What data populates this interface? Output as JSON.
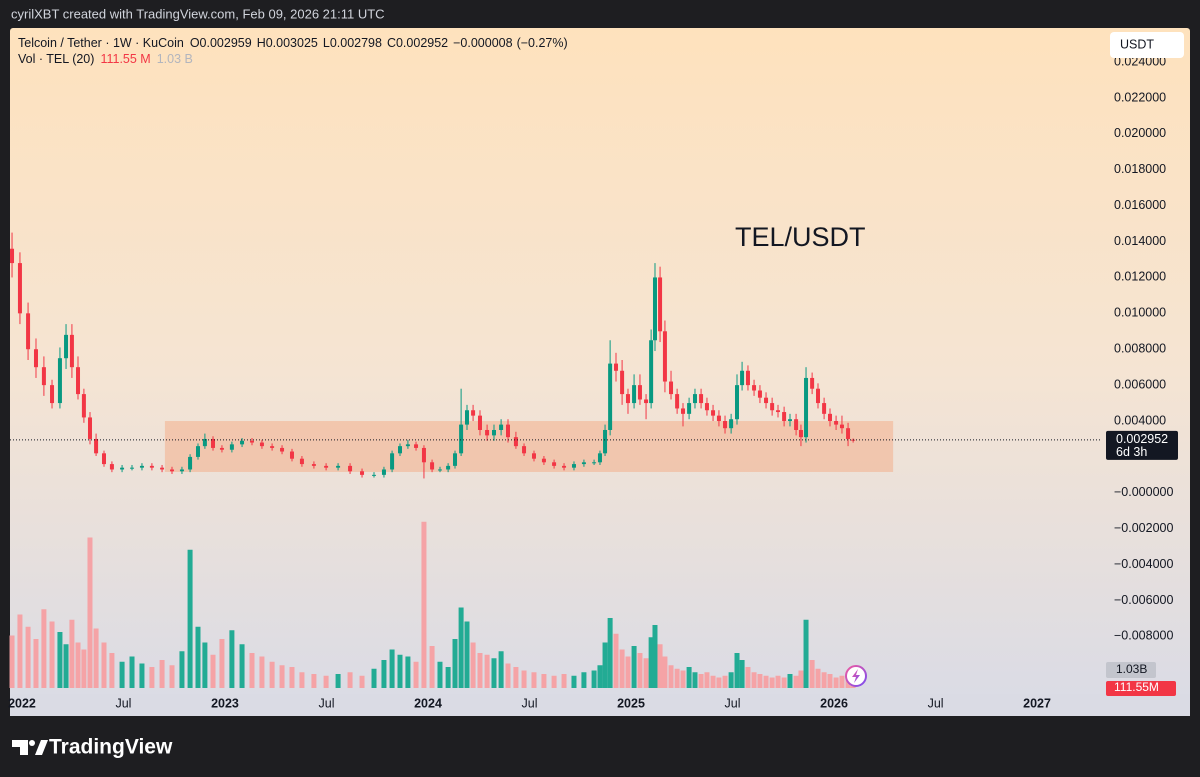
{
  "header": {
    "credit": "cyrilXBT created with TradingView.com, Feb 09, 2026 21:11 UTC"
  },
  "footer": {
    "brand": "TradingView"
  },
  "chart_data": {
    "type": "candlestick",
    "symbol": "Telcoin / Tether · 1W · KuCoin",
    "ohlc_prefixes": [
      "O",
      "H",
      "L",
      "C"
    ],
    "change": {
      "value": -8e-06,
      "label": "−0.000008"
    },
    "change_pct": {
      "value": -0.27,
      "label": "(−0.27%)"
    },
    "volume_title": "Vol · TEL (20)",
    "annotation": "TEL/USDT",
    "currency": "USDT",
    "countdown": "6d 3h",
    "up_color": "#089981",
    "down_color": "#f23645",
    "volume_up_color": "#22ab94",
    "volume_down_color": "#f5a3a6",
    "x": [
      2021.951,
      2021.99,
      2022.03,
      2022.069,
      2022.108,
      2022.148,
      2022.187,
      2022.217,
      2022.246,
      2022.276,
      2022.305,
      2022.335,
      2022.365,
      2022.404,
      2022.443,
      2022.493,
      2022.542,
      2022.591,
      2022.64,
      2022.69,
      2022.739,
      2022.788,
      2022.828,
      2022.867,
      2022.901,
      2022.941,
      2022.985,
      2023.034,
      2023.084,
      2023.133,
      2023.182,
      2023.232,
      2023.281,
      2023.33,
      2023.379,
      2023.438,
      2023.498,
      2023.557,
      2023.616,
      2023.675,
      2023.734,
      2023.783,
      2023.823,
      2023.862,
      2023.901,
      2023.941,
      2023.98,
      2024.02,
      2024.059,
      2024.099,
      2024.133,
      2024.163,
      2024.192,
      2024.222,
      2024.256,
      2024.291,
      2024.325,
      2024.36,
      2024.394,
      2024.433,
      2024.473,
      2024.522,
      2024.571,
      2024.621,
      2024.67,
      2024.719,
      2024.768,
      2024.818,
      2024.847,
      2024.872,
      2024.897,
      2024.926,
      2024.956,
      2024.985,
      2025.015,
      2025.044,
      2025.074,
      2025.099,
      2025.118,
      2025.143,
      2025.167,
      2025.197,
      2025.227,
      2025.256,
      2025.286,
      2025.315,
      2025.345,
      2025.374,
      2025.404,
      2025.433,
      2025.463,
      2025.493,
      2025.522,
      2025.547,
      2025.576,
      2025.606,
      2025.635,
      2025.665,
      2025.695,
      2025.724,
      2025.754,
      2025.783,
      2025.813,
      2025.837,
      2025.862,
      2025.892,
      2025.921,
      2025.951,
      2025.98,
      2026.01,
      2026.039,
      2026.069,
      2026.094
    ],
    "ohlc": [
      [
        0.0136,
        0.0145,
        0.012,
        0.0128
      ],
      [
        0.0128,
        0.0134,
        0.0094,
        0.01
      ],
      [
        0.01,
        0.0106,
        0.0074,
        0.008
      ],
      [
        0.008,
        0.0086,
        0.0064,
        0.007
      ],
      [
        0.007,
        0.0076,
        0.0054,
        0.006
      ],
      [
        0.006,
        0.0063,
        0.0047,
        0.005
      ],
      [
        0.005,
        0.0081,
        0.0047,
        0.0075
      ],
      [
        0.0075,
        0.0094,
        0.0069,
        0.0088
      ],
      [
        0.0088,
        0.0094,
        0.0064,
        0.007
      ],
      [
        0.007,
        0.0076,
        0.0052,
        0.0055
      ],
      [
        0.0055,
        0.0058,
        0.0039,
        0.0042
      ],
      [
        0.0042,
        0.0045,
        0.0027,
        0.003
      ],
      [
        0.003,
        0.0033,
        0.00205,
        0.0022
      ],
      [
        0.0022,
        0.00235,
        0.00145,
        0.0016
      ],
      [
        0.0016,
        0.00175,
        0.00115,
        0.0013
      ],
      [
        0.0013,
        0.00155,
        0.00115,
        0.0014
      ],
      [
        0.0014,
        0.00155,
        0.00125,
        0.0014
      ],
      [
        0.0014,
        0.00165,
        0.00125,
        0.0015
      ],
      [
        0.0015,
        0.00165,
        0.00125,
        0.0014
      ],
      [
        0.0014,
        0.00155,
        0.00115,
        0.0013
      ],
      [
        0.0013,
        0.00145,
        0.00105,
        0.0012
      ],
      [
        0.0012,
        0.00145,
        0.00105,
        0.0013
      ],
      [
        0.0013,
        0.00215,
        0.00115,
        0.002
      ],
      [
        0.002,
        0.00275,
        0.00185,
        0.0026
      ],
      [
        0.0026,
        0.0033,
        0.00245,
        0.003
      ],
      [
        0.003,
        0.00315,
        0.00235,
        0.0025
      ],
      [
        0.0025,
        0.00265,
        0.00225,
        0.0024
      ],
      [
        0.0024,
        0.00285,
        0.00225,
        0.0027
      ],
      [
        0.0027,
        0.00305,
        0.00255,
        0.0029
      ],
      [
        0.0029,
        0.00305,
        0.00265,
        0.0028
      ],
      [
        0.0028,
        0.00295,
        0.00245,
        0.0026
      ],
      [
        0.0026,
        0.00275,
        0.00235,
        0.0025
      ],
      [
        0.0025,
        0.00265,
        0.00215,
        0.0023
      ],
      [
        0.0023,
        0.00245,
        0.00175,
        0.0019
      ],
      [
        0.0019,
        0.00205,
        0.00145,
        0.0016
      ],
      [
        0.0016,
        0.00175,
        0.00135,
        0.0015
      ],
      [
        0.0015,
        0.00165,
        0.00125,
        0.0014
      ],
      [
        0.0014,
        0.00165,
        0.00125,
        0.0015
      ],
      [
        0.0015,
        0.00165,
        0.00105,
        0.0012
      ],
      [
        0.0012,
        0.00135,
        0.00085,
        0.001
      ],
      [
        0.001,
        0.00115,
        0.00085,
        0.001
      ],
      [
        0.001,
        0.00145,
        0.00085,
        0.0013
      ],
      [
        0.0013,
        0.00235,
        0.00115,
        0.0022
      ],
      [
        0.0022,
        0.00275,
        0.00205,
        0.0026
      ],
      [
        0.0026,
        0.00295,
        0.00245,
        0.0027
      ],
      [
        0.0027,
        0.00285,
        0.00235,
        0.0025
      ],
      [
        0.0025,
        0.00265,
        0.0008,
        0.0017
      ],
      [
        0.0017,
        0.00185,
        0.00115,
        0.0013
      ],
      [
        0.0013,
        0.00145,
        0.00115,
        0.0013
      ],
      [
        0.0013,
        0.00165,
        0.00115,
        0.0015
      ],
      [
        0.0015,
        0.00235,
        0.00135,
        0.0022
      ],
      [
        0.0022,
        0.0058,
        0.00205,
        0.0038
      ],
      [
        0.0038,
        0.0049,
        0.0035,
        0.0046
      ],
      [
        0.0046,
        0.0049,
        0.004,
        0.0043
      ],
      [
        0.0043,
        0.0046,
        0.0032,
        0.0035
      ],
      [
        0.0035,
        0.0038,
        0.0029,
        0.0032
      ],
      [
        0.0032,
        0.0038,
        0.0029,
        0.0035
      ],
      [
        0.0035,
        0.0041,
        0.0032,
        0.0038
      ],
      [
        0.0038,
        0.0041,
        0.0028,
        0.0031
      ],
      [
        0.0031,
        0.0034,
        0.00245,
        0.0026
      ],
      [
        0.0026,
        0.00275,
        0.00205,
        0.0022
      ],
      [
        0.0022,
        0.00235,
        0.00175,
        0.0019
      ],
      [
        0.0019,
        0.00205,
        0.00155,
        0.0017
      ],
      [
        0.0017,
        0.00185,
        0.00135,
        0.0015
      ],
      [
        0.0015,
        0.00165,
        0.00125,
        0.0014
      ],
      [
        0.0014,
        0.00175,
        0.00125,
        0.0016
      ],
      [
        0.0016,
        0.00185,
        0.00145,
        0.0017
      ],
      [
        0.0017,
        0.00185,
        0.00155,
        0.0017
      ],
      [
        0.0017,
        0.00235,
        0.00155,
        0.0022
      ],
      [
        0.0022,
        0.0038,
        0.00205,
        0.0035
      ],
      [
        0.0035,
        0.0085,
        0.0032,
        0.0072
      ],
      [
        0.0072,
        0.0078,
        0.0062,
        0.0068
      ],
      [
        0.0068,
        0.0074,
        0.0049,
        0.0055
      ],
      [
        0.0055,
        0.0058,
        0.0044,
        0.005
      ],
      [
        0.005,
        0.0066,
        0.0047,
        0.006
      ],
      [
        0.006,
        0.0066,
        0.0049,
        0.0052
      ],
      [
        0.0052,
        0.0055,
        0.0041,
        0.005
      ],
      [
        0.005,
        0.0091,
        0.0047,
        0.0085
      ],
      [
        0.0085,
        0.0128,
        0.0079,
        0.012
      ],
      [
        0.012,
        0.0126,
        0.0084,
        0.009
      ],
      [
        0.009,
        0.0096,
        0.0056,
        0.0062
      ],
      [
        0.0062,
        0.0068,
        0.0052,
        0.0055
      ],
      [
        0.0055,
        0.0058,
        0.0044,
        0.0047
      ],
      [
        0.0047,
        0.005,
        0.0037,
        0.0044
      ],
      [
        0.0044,
        0.0053,
        0.0041,
        0.005
      ],
      [
        0.005,
        0.0058,
        0.0047,
        0.0055
      ],
      [
        0.0055,
        0.0058,
        0.0047,
        0.005
      ],
      [
        0.005,
        0.0053,
        0.0043,
        0.0046
      ],
      [
        0.0046,
        0.0049,
        0.004,
        0.0043
      ],
      [
        0.0043,
        0.0046,
        0.0037,
        0.004
      ],
      [
        0.004,
        0.0043,
        0.0033,
        0.0036
      ],
      [
        0.0036,
        0.0044,
        0.0033,
        0.0041
      ],
      [
        0.0041,
        0.0066,
        0.0038,
        0.006
      ],
      [
        0.006,
        0.0073,
        0.0057,
        0.0068
      ],
      [
        0.0068,
        0.0071,
        0.0057,
        0.006
      ],
      [
        0.006,
        0.0063,
        0.0054,
        0.0057
      ],
      [
        0.0057,
        0.006,
        0.005,
        0.0053
      ],
      [
        0.0053,
        0.0056,
        0.0047,
        0.005
      ],
      [
        0.005,
        0.0053,
        0.0043,
        0.0046
      ],
      [
        0.0046,
        0.0049,
        0.0042,
        0.0045
      ],
      [
        0.0045,
        0.0048,
        0.0037,
        0.004
      ],
      [
        0.004,
        0.0044,
        0.0037,
        0.0041
      ],
      [
        0.0041,
        0.0044,
        0.0032,
        0.0035
      ],
      [
        0.0035,
        0.0038,
        0.0026,
        0.0031
      ],
      [
        0.0031,
        0.007,
        0.0028,
        0.0064
      ],
      [
        0.0064,
        0.0067,
        0.0055,
        0.0058
      ],
      [
        0.0058,
        0.0061,
        0.0047,
        0.005
      ],
      [
        0.005,
        0.0053,
        0.0041,
        0.0044
      ],
      [
        0.0044,
        0.0047,
        0.0037,
        0.004
      ],
      [
        0.004,
        0.0043,
        0.0035,
        0.0038
      ],
      [
        0.0038,
        0.0043,
        0.0033,
        0.0036
      ],
      [
        0.0036,
        0.0039,
        0.0026,
        0.003
      ],
      [
        0.002959,
        0.003025,
        0.002798,
        0.002952
      ]
    ],
    "volume": [
      3000,
      4200,
      3500,
      2800,
      4500,
      3800,
      3200,
      2500,
      3900,
      2600,
      2200,
      8600,
      3400,
      2600,
      2000,
      1500,
      1800,
      1400,
      1200,
      1600,
      1300,
      2100,
      7900,
      3500,
      2600,
      1900,
      2800,
      3300,
      2500,
      2000,
      1800,
      1500,
      1300,
      1200,
      900,
      800,
      700,
      800,
      900,
      700,
      1100,
      1600,
      2200,
      1900,
      1800,
      1500,
      9500,
      2400,
      1500,
      1200,
      2800,
      4600,
      3800,
      2600,
      2000,
      1900,
      1700,
      2100,
      1400,
      1200,
      1000,
      900,
      800,
      700,
      800,
      700,
      900,
      1000,
      1300,
      2600,
      4000,
      3100,
      2200,
      1800,
      2400,
      2000,
      1700,
      2900,
      3600,
      2500,
      1800,
      1300,
      1100,
      1000,
      1200,
      900,
      800,
      900,
      700,
      600,
      700,
      900,
      2000,
      1600,
      1200,
      900,
      800,
      700,
      600,
      700,
      600,
      800,
      700,
      1000,
      3900,
      1600,
      1100,
      900,
      800,
      600,
      700,
      900,
      111.55
    ],
    "last_volume_legend": "111.55 M",
    "last_volume_label": "111.55M",
    "volume_ma": {
      "value": 1030,
      "label": "1.03B",
      "legend_label": "1.03 B"
    },
    "volume_ylim": [
      0,
      10000
    ],
    "xlim": [
      2021.941,
      2027.31
    ],
    "xticks": [
      2022,
      {
        "value": 2022.5,
        "label": "Jul"
      },
      2023,
      {
        "value": 2023.5,
        "label": "Jul"
      },
      2024,
      {
        "value": 2024.5,
        "label": "Jul"
      },
      2025,
      {
        "value": 2025.5,
        "label": "Jul"
      },
      2026,
      {
        "value": 2026.5,
        "label": "Jul"
      },
      2027
    ],
    "ylim": [
      -0.0111,
      0.0259
    ],
    "yticks": [
      {
        "value": 0.024,
        "label": "0.024000"
      },
      {
        "value": 0.022,
        "label": "0.022000"
      },
      {
        "value": 0.02,
        "label": "0.020000"
      },
      {
        "value": 0.018,
        "label": "0.018000"
      },
      {
        "value": 0.016,
        "label": "0.016000"
      },
      {
        "value": 0.014,
        "label": "0.014000"
      },
      {
        "value": 0.012,
        "label": "0.012000"
      },
      {
        "value": 0.01,
        "label": "0.010000"
      },
      {
        "value": 0.008,
        "label": "0.008000"
      },
      {
        "value": 0.006,
        "label": "0.006000"
      },
      {
        "value": 0.004,
        "label": "0.004000"
      },
      {
        "value": 0,
        "label": "−0.000000"
      },
      {
        "value": -0.002,
        "label": "−0.002000"
      },
      {
        "value": -0.004,
        "label": "−0.004000"
      },
      {
        "value": -0.006,
        "label": "−0.006000"
      },
      {
        "value": -0.008,
        "label": "−0.008000"
      }
    ],
    "zone": {
      "x": [
        2022.704,
        2026.291
      ],
      "y": [
        0.00116,
        0.004
      ],
      "color": "#f3a57c"
    }
  }
}
